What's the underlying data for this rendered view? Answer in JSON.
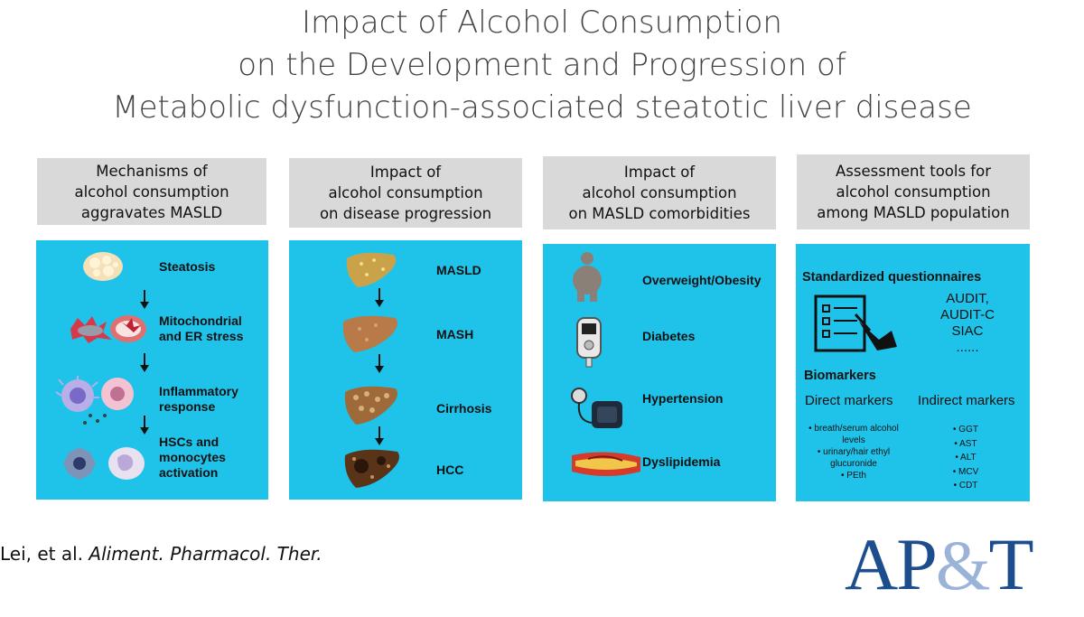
{
  "title": {
    "line1": "Impact of Alcohol Consumption",
    "line2": "on the Development and Progression of",
    "line3": "Metabolic dysfunction-associated steatotic liver disease"
  },
  "columns": [
    {
      "header": [
        "Mechanisms of",
        "alcohol consumption",
        "aggravates MASLD"
      ],
      "items": [
        {
          "label": [
            "Steatosis"
          ],
          "icon": "fat-cell-icon"
        },
        {
          "label": [
            "Mitochondrial",
            "and ER stress"
          ],
          "icon": "mitochondria-icon"
        },
        {
          "label": [
            "Inflammatory",
            "response"
          ],
          "icon": "immune-cell-icon"
        },
        {
          "label": [
            "HSCs and",
            "monocytes",
            "activation"
          ],
          "icon": "stellate-cell-icon"
        }
      ]
    },
    {
      "header": [
        "Impact of",
        "alcohol consumption",
        "on disease progression"
      ],
      "items": [
        {
          "label": [
            "MASLD"
          ],
          "icon": "fatty-liver-icon"
        },
        {
          "label": [
            "MASH"
          ],
          "icon": "inflamed-liver-icon"
        },
        {
          "label": [
            "Cirrhosis"
          ],
          "icon": "cirrhotic-liver-icon"
        },
        {
          "label": [
            "HCC"
          ],
          "icon": "cancer-liver-icon"
        }
      ]
    },
    {
      "header": [
        "Impact of",
        "alcohol consumption",
        "on MASLD comorbidities"
      ],
      "items": [
        {
          "label": [
            "Overweight/Obesity"
          ],
          "icon": "person-obesity-icon"
        },
        {
          "label": [
            "Diabetes"
          ],
          "icon": "glucometer-icon"
        },
        {
          "label": [
            "Hypertension"
          ],
          "icon": "blood-pressure-cuff-icon"
        },
        {
          "label": [
            "Dyslipidemia"
          ],
          "icon": "plaque-artery-icon"
        }
      ]
    },
    {
      "header": [
        "Assessment tools for",
        "alcohol consumption",
        "among MASLD population"
      ],
      "questionnaires_title": "Standardized questionnaires",
      "questionnaires": [
        "AUDIT,",
        "AUDIT-C",
        "SIAC",
        "......"
      ],
      "biomarkers_title": "Biomarkers",
      "direct_title": "Direct markers",
      "indirect_title": "Indirect markers",
      "direct": [
        "• breath/serum alcohol",
        "levels",
        "• urinary/hair ethyl",
        "glucuronide",
        "• PEth"
      ],
      "indirect": [
        "• GGT",
        "• AST",
        "• ALT",
        "• MCV",
        "• CDT"
      ]
    }
  ],
  "citation": {
    "authors": "Lei, et al. ",
    "journal": "Aliment. Pharmacol. Ther."
  },
  "logo": {
    "a": "AP",
    "amp": "&",
    "t": "T"
  },
  "colors": {
    "panel": "#1fc3ea",
    "header": "#d9d9d9",
    "logo": "#1c4d8c"
  }
}
